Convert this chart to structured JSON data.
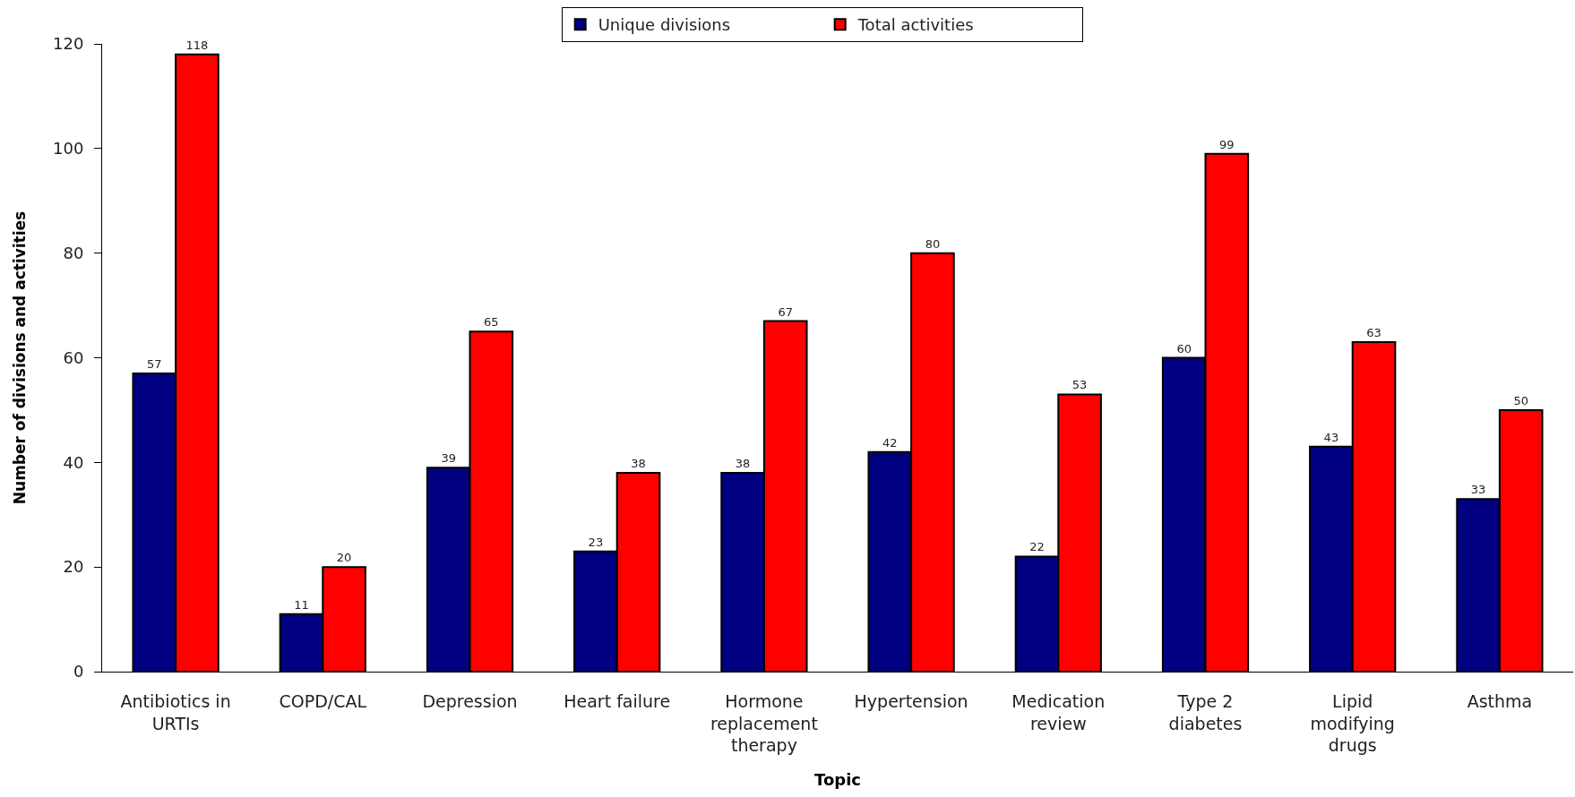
{
  "chart_data": {
    "type": "bar",
    "xlabel": "Topic",
    "ylabel": "Number of divisions and activities",
    "categories": [
      "Antibiotics in URTIs",
      "COPD/CAL",
      "Depression",
      "Heart failure",
      "Hormone replacement therapy",
      "Hypertension",
      "Medication review",
      "Type 2 diabetes",
      "Lipid modifying drugs",
      "Asthma"
    ],
    "series": [
      {
        "name": "Unique divisions",
        "color": "#000080",
        "values": [
          57,
          11,
          39,
          23,
          38,
          42,
          22,
          60,
          43,
          33
        ]
      },
      {
        "name": "Total activities",
        "color": "#ff0000",
        "values": [
          118,
          20,
          65,
          38,
          67,
          80,
          53,
          99,
          63,
          50
        ]
      }
    ],
    "ylim": [
      0,
      120
    ],
    "yticks": [
      0,
      20,
      40,
      60,
      80,
      100,
      120
    ],
    "data_labels": true,
    "legend": "top"
  }
}
